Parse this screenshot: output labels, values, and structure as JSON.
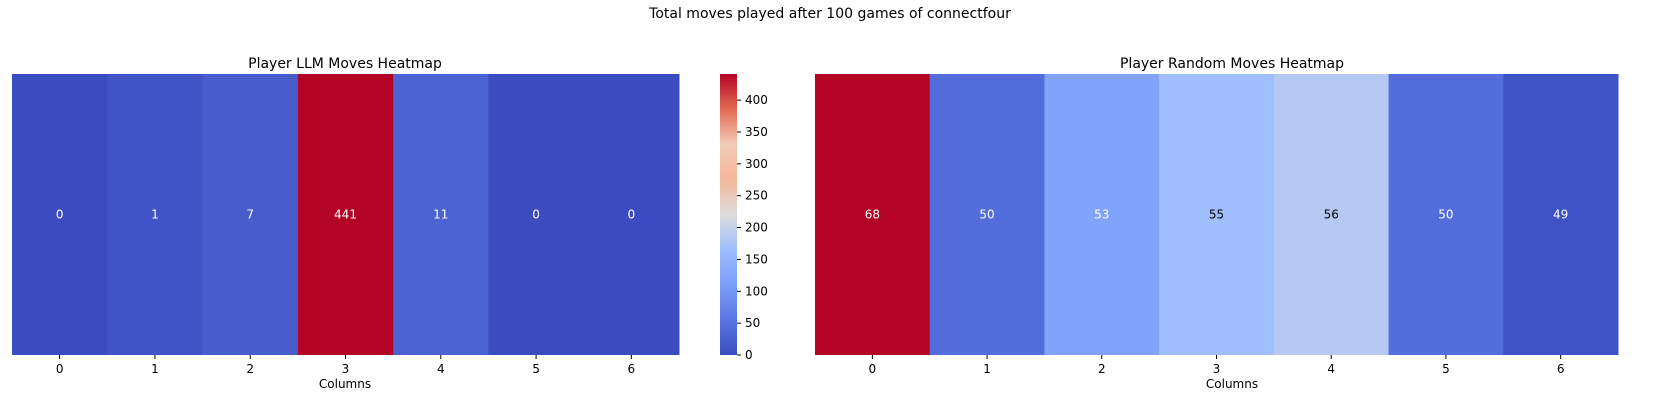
{
  "figure": {
    "suptitle": "Total moves played after 100 games of connectfour"
  },
  "chart_data": [
    {
      "type": "heatmap",
      "title": "Player LLM Moves Heatmap",
      "xlabel": "Columns",
      "ylabel": "",
      "categories": [
        "0",
        "1",
        "2",
        "3",
        "4",
        "5",
        "6"
      ],
      "values": [
        0,
        1,
        7,
        441,
        11,
        0,
        0
      ],
      "colormap": "coolwarm",
      "vmin": 0,
      "vmax": 68
    },
    {
      "type": "heatmap",
      "title": "Player Random Moves Heatmap",
      "xlabel": "Columns",
      "ylabel": "",
      "categories": [
        "0",
        "1",
        "2",
        "3",
        "4",
        "5",
        "6"
      ],
      "values": [
        68,
        50,
        53,
        55,
        56,
        50,
        49
      ],
      "colormap": "coolwarm",
      "vmin": 49,
      "vmax": 68
    }
  ],
  "colorbar": {
    "colormap": "coolwarm",
    "min": 0,
    "max": 441,
    "ticks": [
      "0",
      "50",
      "100",
      "150",
      "200",
      "250",
      "300",
      "350",
      "400"
    ]
  }
}
